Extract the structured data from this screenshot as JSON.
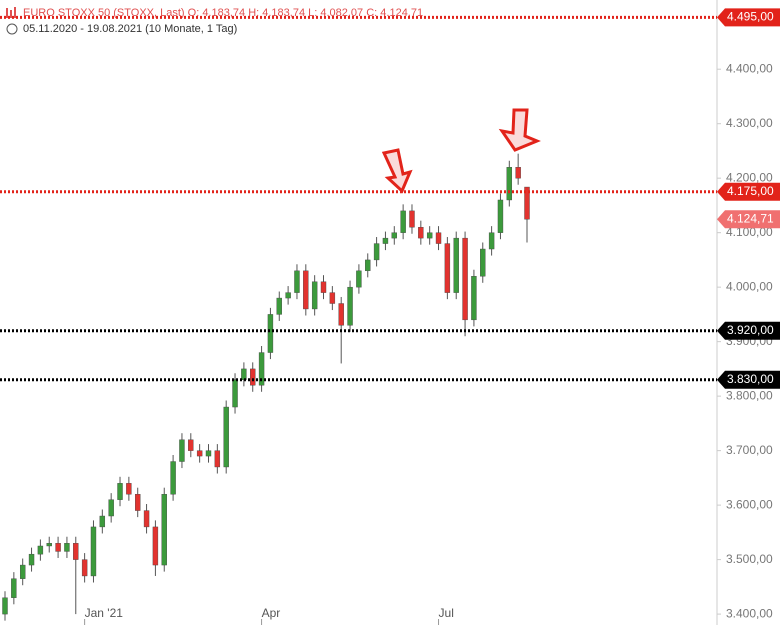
{
  "chart_data": {
    "type": "candlestick",
    "legend_text": "EURO STOXX 50 (STOXX, Last)  O: 4.183,74  H: 4.183,74  L: 4.082,07  C: 4.124,71",
    "date_range": "05.11.2020 - 19.08.2021   (10 Monate, 1 Tag)",
    "categories": [
      null,
      null,
      null,
      null,
      null,
      null,
      null,
      null,
      null,
      "Jan '21",
      null,
      null,
      null,
      null,
      null,
      null,
      null,
      null,
      null,
      null,
      null,
      null,
      null,
      null,
      null,
      null,
      null,
      null,
      null,
      "Apr",
      null,
      null,
      null,
      null,
      null,
      null,
      null,
      null,
      null,
      null,
      null,
      null,
      null,
      null,
      null,
      null,
      null,
      null,
      null,
      "Jul",
      null,
      null,
      null,
      null,
      null,
      null,
      null,
      null,
      null,
      null
    ],
    "open": [
      3400,
      3430,
      3465,
      3490,
      3510,
      3525,
      3530,
      3515,
      3530,
      3500,
      3470,
      3560,
      3580,
      3610,
      3640,
      3620,
      3590,
      3560,
      3490,
      3620,
      3680,
      3720,
      3700,
      3690,
      3700,
      3670,
      3780,
      3830,
      3850,
      3820,
      3880,
      3950,
      3980,
      3990,
      4030,
      3960,
      4010,
      3990,
      3970,
      3930,
      4000,
      4030,
      4050,
      4080,
      4090,
      4100,
      4140,
      4110,
      4090,
      4100,
      4080,
      3990,
      4090,
      3940,
      4020,
      4070,
      4100,
      4160,
      4220,
      4183.74
    ],
    "high": [
      3442,
      3477,
      3502,
      3522,
      3537,
      3542,
      3542,
      3542,
      3542,
      3512,
      3572,
      3592,
      3622,
      3652,
      3652,
      3632,
      3602,
      3572,
      3632,
      3692,
      3732,
      3732,
      3712,
      3712,
      3712,
      3792,
      3842,
      3862,
      3862,
      3892,
      3962,
      3992,
      4002,
      4042,
      4042,
      4022,
      4022,
      4002,
      3982,
      4012,
      4042,
      4062,
      4092,
      4102,
      4112,
      4152,
      4152,
      4122,
      4112,
      4112,
      4092,
      4102,
      4102,
      4032,
      4082,
      4112,
      4172,
      4232,
      4245,
      4183.74
    ],
    "low": [
      3388,
      3418,
      3453,
      3478,
      3498,
      3513,
      3503,
      3503,
      3400,
      3458,
      3458,
      3548,
      3568,
      3598,
      3608,
      3578,
      3548,
      3470,
      3478,
      3608,
      3668,
      3688,
      3678,
      3678,
      3658,
      3658,
      3768,
      3818,
      3808,
      3808,
      3868,
      3938,
      3968,
      3978,
      3948,
      3948,
      3978,
      3958,
      3860,
      3918,
      3988,
      4018,
      4038,
      4068,
      4078,
      4088,
      4098,
      4078,
      4078,
      4068,
      3978,
      3978,
      3910,
      3928,
      4008,
      4058,
      4088,
      4148,
      4188,
      4082.07
    ],
    "close": [
      3430,
      3465,
      3490,
      3510,
      3525,
      3530,
      3515,
      3530,
      3500,
      3470,
      3560,
      3580,
      3610,
      3640,
      3620,
      3590,
      3560,
      3490,
      3620,
      3680,
      3720,
      3700,
      3690,
      3700,
      3670,
      3780,
      3830,
      3850,
      3820,
      3880,
      3950,
      3980,
      3990,
      4030,
      3960,
      4010,
      3990,
      3970,
      3930,
      4000,
      4030,
      4050,
      4080,
      4090,
      4100,
      4140,
      4110,
      4090,
      4100,
      4080,
      3990,
      4090,
      3940,
      4020,
      4070,
      4100,
      4160,
      4220,
      4200,
      4124.71
    ],
    "up_color": "#3c9a3c",
    "down_color": "#e2332f",
    "ylim": [
      3380,
      4527
    ],
    "yticks": [
      {
        "value": 3400,
        "label": "3.400,00"
      },
      {
        "value": 3500,
        "label": "3.500,00"
      },
      {
        "value": 3600,
        "label": "3.600,00"
      },
      {
        "value": 3700,
        "label": "3.700,00"
      },
      {
        "value": 3800,
        "label": "3.800,00"
      },
      {
        "value": 3900,
        "label": "3.900,00"
      },
      {
        "value": 4000,
        "label": "4.000,00"
      },
      {
        "value": 4100,
        "label": "4.100,00"
      },
      {
        "value": 4200,
        "label": "4.200,00"
      },
      {
        "value": 4300,
        "label": "4.300,00"
      },
      {
        "value": 4400,
        "label": "4.400,00"
      }
    ],
    "levels": [
      {
        "value": 4495,
        "label": "4.495,00",
        "color": "#e2231a",
        "line": true
      },
      {
        "value": 4175,
        "label": "4.175,00",
        "color": "#e2231a",
        "line": true
      },
      {
        "value": 3920,
        "label": "3.920,00",
        "color": "#000000",
        "line": true
      },
      {
        "value": 3830,
        "label": "3.830,00",
        "color": "#000000",
        "line": true
      },
      {
        "value": 4124.71,
        "label": "4.124,71",
        "color": "#f07070",
        "line": false
      }
    ]
  }
}
